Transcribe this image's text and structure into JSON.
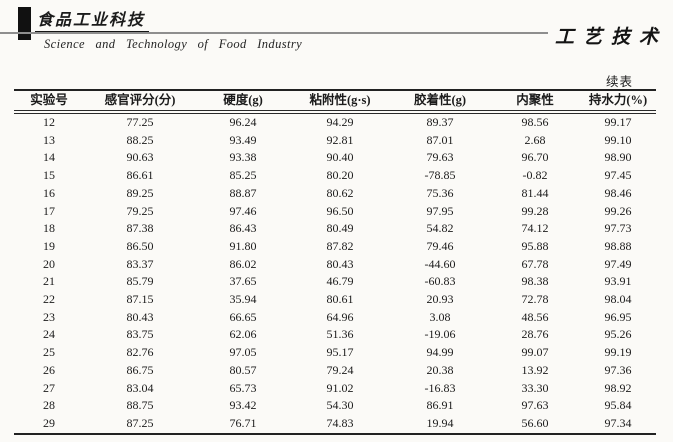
{
  "masthead": {
    "journal_cn": "食品工业科技",
    "journal_en": "Science and Technology of Food Industry",
    "section_label": "工艺技术"
  },
  "table": {
    "continued_label": "续表",
    "columns": [
      "实验号",
      "感官评分(分)",
      "硬度(g)",
      "粘附性(g·s)",
      "胶着性(g)",
      "内聚性",
      "持水力(%)"
    ],
    "rows": [
      [
        "12",
        "77.25",
        "96.24",
        "94.29",
        "89.37",
        "98.56",
        "99.17"
      ],
      [
        "13",
        "88.25",
        "93.49",
        "92.81",
        "87.01",
        "2.68",
        "99.10"
      ],
      [
        "14",
        "90.63",
        "93.38",
        "90.40",
        "79.63",
        "96.70",
        "98.90"
      ],
      [
        "15",
        "86.61",
        "85.25",
        "80.20",
        "-78.85",
        "-0.82",
        "97.45"
      ],
      [
        "16",
        "89.25",
        "88.87",
        "80.62",
        "75.36",
        "81.44",
        "98.46"
      ],
      [
        "17",
        "79.25",
        "97.46",
        "96.50",
        "97.95",
        "99.28",
        "99.26"
      ],
      [
        "18",
        "87.38",
        "86.43",
        "80.49",
        "54.82",
        "74.12",
        "97.73"
      ],
      [
        "19",
        "86.50",
        "91.80",
        "87.82",
        "79.46",
        "95.88",
        "98.88"
      ],
      [
        "20",
        "83.37",
        "86.02",
        "80.43",
        "-44.60",
        "67.78",
        "97.49"
      ],
      [
        "21",
        "85.79",
        "37.65",
        "46.79",
        "-60.83",
        "98.38",
        "93.91"
      ],
      [
        "22",
        "87.15",
        "35.94",
        "80.61",
        "20.93",
        "72.78",
        "98.04"
      ],
      [
        "23",
        "80.43",
        "66.65",
        "64.96",
        "3.08",
        "48.56",
        "96.95"
      ],
      [
        "24",
        "83.75",
        "62.06",
        "51.36",
        "-19.06",
        "28.76",
        "95.26"
      ],
      [
        "25",
        "82.76",
        "97.05",
        "95.17",
        "94.99",
        "99.07",
        "99.19"
      ],
      [
        "26",
        "86.75",
        "80.57",
        "79.24",
        "20.38",
        "13.92",
        "97.36"
      ],
      [
        "27",
        "83.04",
        "65.73",
        "91.02",
        "-16.83",
        "33.30",
        "98.92"
      ],
      [
        "28",
        "88.75",
        "93.42",
        "54.30",
        "86.91",
        "97.63",
        "95.84"
      ],
      [
        "29",
        "87.25",
        "76.71",
        "74.83",
        "19.94",
        "56.60",
        "97.34"
      ]
    ]
  }
}
